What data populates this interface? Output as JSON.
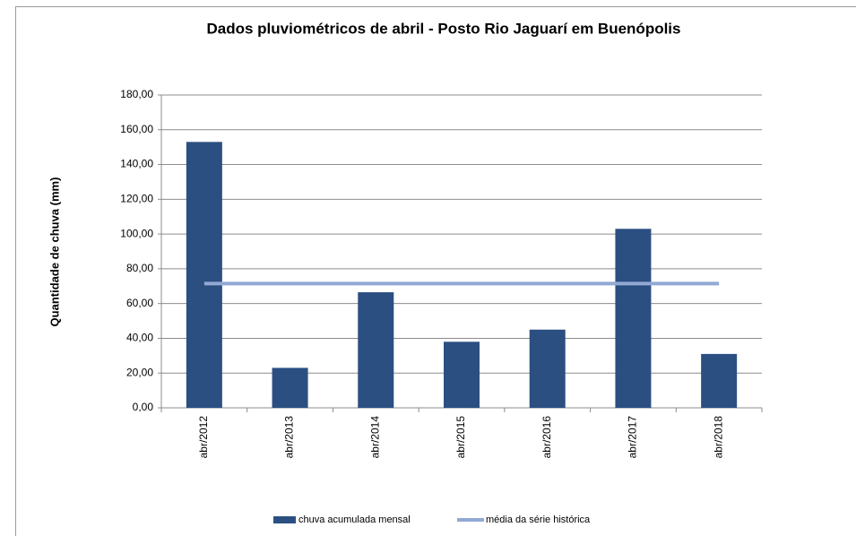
{
  "chart_data": {
    "type": "bar",
    "title": "Dados pluviométricos de abril - Posto Rio Jaguarí em Buenópolis",
    "y_label": "Quantidade de chuva (mm)",
    "categories": [
      "abr/2012",
      "abr/2013",
      "abr/2014",
      "abr/2015",
      "abr/2016",
      "abr/2017",
      "abr/2018"
    ],
    "series": [
      {
        "name": "chuva acumulada mensal",
        "color": "#2b4f81",
        "values": [
          153,
          23,
          66.5,
          38,
          45,
          103,
          31
        ]
      },
      {
        "name": "média da série histórica",
        "color": "#92a9d4",
        "type": "line",
        "values": [
          71.5,
          71.5,
          71.5,
          71.5,
          71.5,
          71.5,
          71.5
        ]
      }
    ],
    "ylim": [
      0,
      180
    ],
    "yticks": [
      {
        "value": 0,
        "label": "0,00"
      },
      {
        "value": 20,
        "label": "20,00"
      },
      {
        "value": 40,
        "label": "40,00"
      },
      {
        "value": 60,
        "label": "60,00"
      },
      {
        "value": 80,
        "label": "80,00"
      },
      {
        "value": 100,
        "label": "100,00"
      },
      {
        "value": 120,
        "label": "120,00"
      },
      {
        "value": 140,
        "label": "140,00"
      },
      {
        "value": 160,
        "label": "160,00"
      },
      {
        "value": 180,
        "label": "180,00"
      }
    ],
    "grid": true,
    "legend": "bottom"
  }
}
